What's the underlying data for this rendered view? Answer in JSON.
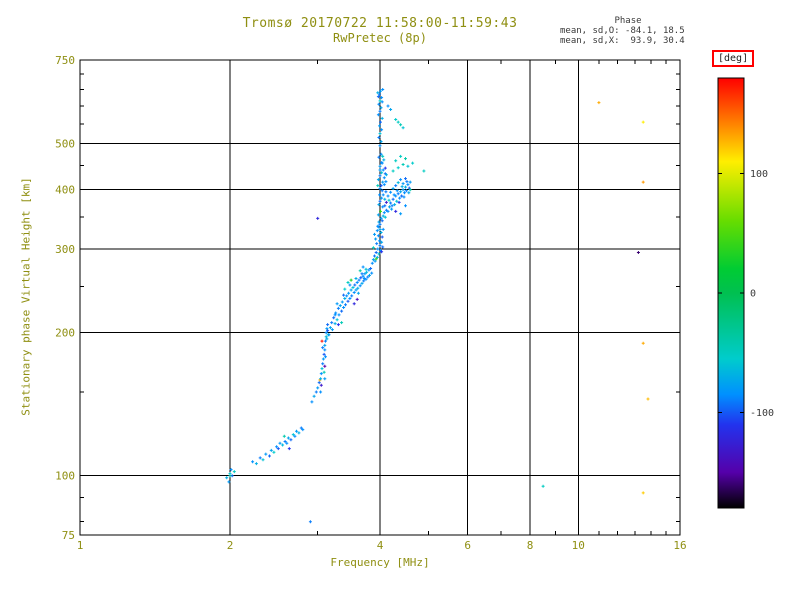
{
  "stats": {
    "heading": "Phase",
    "o_line": "mean, sd,O: -84.1, 18.5",
    "x_line": "mean, sd,X:  93.9, 30.4"
  },
  "colors": {
    "plot_text": "#8f8f12",
    "stats_text": "#3a3a3a",
    "grid": "#000000",
    "background": "#ffffff",
    "deg_box_border": "#ff0000"
  },
  "chart_data": {
    "type": "scatter",
    "title": "Tromsø 20170722 11:58:00-11:59:43",
    "subtitle": "RwPretec (8p)",
    "xlabel": "Frequency [MHz]",
    "ylabel": "Stationary phase Virtual Height [km]",
    "x_scale": "log",
    "y_scale": "log",
    "xlim": [
      1,
      16
    ],
    "ylim": [
      75,
      750
    ],
    "x_major_ticks": [
      1,
      2,
      4,
      6,
      8,
      10,
      16
    ],
    "x_gridlines": [
      2,
      4,
      6,
      8,
      10
    ],
    "x_minor_ticks": [
      3,
      5,
      7,
      9,
      11,
      12,
      13,
      14,
      15
    ],
    "y_major_ticks": [
      75,
      100,
      200,
      300,
      400,
      500,
      750
    ],
    "y_gridlines": [
      100,
      200,
      300,
      400,
      500
    ],
    "y_minor_ticks": [
      80,
      90,
      150,
      250,
      350,
      450,
      550,
      600,
      650,
      700
    ],
    "colorbar": {
      "label": "[deg]",
      "ticks": [
        100,
        0,
        -100
      ],
      "range": [
        -180,
        180
      ],
      "stops": [
        [
          180,
          "#ff0000"
        ],
        [
          140,
          "#ff8800"
        ],
        [
          110,
          "#ffee00"
        ],
        [
          60,
          "#66dd00"
        ],
        [
          20,
          "#00cc33"
        ],
        [
          0,
          "#00c050"
        ],
        [
          -55,
          "#00cccc"
        ],
        [
          -85,
          "#0090ff"
        ],
        [
          -110,
          "#2233ee"
        ],
        [
          -150,
          "#5500aa"
        ],
        [
          -180,
          "#000000"
        ]
      ]
    },
    "points": [
      [
        1.97,
        99,
        -70
      ],
      [
        2.0,
        101,
        -60
      ],
      [
        2.02,
        100,
        -95
      ],
      [
        2.04,
        102,
        -50
      ],
      [
        1.99,
        97,
        -80
      ],
      [
        2.01,
        103,
        -85
      ],
      [
        2.0,
        100,
        -40
      ],
      [
        2.9,
        80,
        -90
      ],
      [
        2.22,
        107,
        -85
      ],
      [
        2.26,
        106,
        -70
      ],
      [
        2.3,
        109,
        -90
      ],
      [
        2.33,
        108,
        -60
      ],
      [
        2.36,
        111,
        -80
      ],
      [
        2.4,
        110,
        -95
      ],
      [
        2.42,
        113,
        -75
      ],
      [
        2.45,
        112,
        -55
      ],
      [
        2.48,
        115,
        -85
      ],
      [
        2.5,
        114,
        -100
      ],
      [
        2.52,
        117,
        -80
      ],
      [
        2.55,
        116,
        -65
      ],
      [
        2.58,
        118,
        -90
      ],
      [
        2.6,
        117,
        -85
      ],
      [
        2.62,
        120,
        -75
      ],
      [
        2.65,
        119,
        -95
      ],
      [
        2.68,
        122,
        -60
      ],
      [
        2.7,
        121,
        -85
      ],
      [
        2.72,
        124,
        -80
      ],
      [
        2.75,
        123,
        -70
      ],
      [
        2.78,
        126,
        -90
      ],
      [
        2.8,
        125,
        -85
      ],
      [
        2.57,
        121,
        -40
      ],
      [
        2.63,
        114,
        -110
      ],
      [
        2.92,
        143,
        -85
      ],
      [
        2.95,
        147,
        -75
      ],
      [
        2.98,
        150,
        -90
      ],
      [
        3.0,
        153,
        -80
      ],
      [
        3.02,
        157,
        -95
      ],
      [
        3.03,
        159,
        130
      ],
      [
        3.04,
        160,
        -70
      ],
      [
        3.05,
        164,
        -85
      ],
      [
        3.06,
        168,
        -60
      ],
      [
        3.07,
        172,
        -90
      ],
      [
        3.08,
        176,
        -80
      ],
      [
        3.09,
        180,
        -100
      ],
      [
        3.1,
        184,
        -85
      ],
      [
        3.1,
        188,
        -75
      ],
      [
        3.11,
        192,
        -90
      ],
      [
        3.06,
        192,
        175
      ],
      [
        3.12,
        196,
        -65
      ],
      [
        3.12,
        200,
        -85
      ],
      [
        3.13,
        204,
        -80
      ],
      [
        3.14,
        208,
        -95
      ],
      [
        3.1,
        170,
        -150
      ],
      [
        3.05,
        155,
        -130
      ],
      [
        3.15,
        198,
        -55
      ],
      [
        3.09,
        165,
        -45
      ],
      [
        3.11,
        178,
        -85
      ],
      [
        3.07,
        186,
        -90
      ],
      [
        3.13,
        194,
        -70
      ],
      [
        3.04,
        150,
        -85
      ],
      [
        3.14,
        202,
        -100
      ],
      [
        3.1,
        160,
        -80
      ],
      [
        3.0,
        348,
        -120
      ],
      [
        3.16,
        198,
        -85
      ],
      [
        3.18,
        205,
        -75
      ],
      [
        3.2,
        210,
        -90
      ],
      [
        3.21,
        203,
        -80
      ],
      [
        3.23,
        215,
        -95
      ],
      [
        3.25,
        209,
        -70
      ],
      [
        3.26,
        220,
        -85
      ],
      [
        3.28,
        213,
        -60
      ],
      [
        3.3,
        225,
        -90
      ],
      [
        3.31,
        218,
        -85
      ],
      [
        3.33,
        228,
        -75
      ],
      [
        3.35,
        222,
        -95
      ],
      [
        3.36,
        232,
        -80
      ],
      [
        3.38,
        226,
        -85
      ],
      [
        3.4,
        236,
        -70
      ],
      [
        3.41,
        229,
        -90
      ],
      [
        3.43,
        239,
        -85
      ],
      [
        3.45,
        233,
        -100
      ],
      [
        3.46,
        242,
        -80
      ],
      [
        3.48,
        236,
        -85
      ],
      [
        3.5,
        246,
        -75
      ],
      [
        3.51,
        239,
        -90
      ],
      [
        3.53,
        249,
        -60
      ],
      [
        3.55,
        243,
        -85
      ],
      [
        3.56,
        252,
        -95
      ],
      [
        3.58,
        246,
        -80
      ],
      [
        3.6,
        255,
        -85
      ],
      [
        3.61,
        248,
        -70
      ],
      [
        3.63,
        258,
        -90
      ],
      [
        3.65,
        251,
        -85
      ],
      [
        3.66,
        261,
        -100
      ],
      [
        3.68,
        254,
        -75
      ],
      [
        3.7,
        263,
        -85
      ],
      [
        3.71,
        257,
        -90
      ],
      [
        3.73,
        266,
        -80
      ],
      [
        3.75,
        259,
        -85
      ],
      [
        3.76,
        268,
        -65
      ],
      [
        3.78,
        262,
        -90
      ],
      [
        3.8,
        271,
        -85
      ],
      [
        3.81,
        264,
        -75
      ],
      [
        3.83,
        273,
        -95
      ],
      [
        3.85,
        267,
        -85
      ],
      [
        3.35,
        210,
        -45
      ],
      [
        3.45,
        255,
        -50
      ],
      [
        3.55,
        230,
        -120
      ],
      [
        3.65,
        270,
        -40
      ],
      [
        3.5,
        258,
        30
      ],
      [
        3.6,
        235,
        -140
      ],
      [
        3.4,
        247,
        -55
      ],
      [
        3.7,
        275,
        -85
      ],
      [
        3.3,
        208,
        -110
      ],
      [
        3.75,
        272,
        -60
      ],
      [
        3.25,
        218,
        -85
      ],
      [
        3.68,
        266,
        -90
      ],
      [
        3.58,
        260,
        -70
      ],
      [
        3.48,
        252,
        -85
      ],
      [
        3.38,
        240,
        -95
      ],
      [
        3.28,
        230,
        -80
      ],
      [
        3.72,
        260,
        -85
      ],
      [
        3.62,
        242,
        -75
      ],
      [
        3.86,
        280,
        -85
      ],
      [
        3.88,
        285,
        -75
      ],
      [
        3.9,
        290,
        -90
      ],
      [
        3.91,
        283,
        -80
      ],
      [
        3.93,
        295,
        -95
      ],
      [
        3.95,
        288,
        -70
      ],
      [
        3.96,
        300,
        -85
      ],
      [
        3.98,
        293,
        -60
      ],
      [
        4.0,
        305,
        -90
      ],
      [
        4.01,
        298,
        -85
      ],
      [
        4.03,
        310,
        -75
      ],
      [
        4.05,
        303,
        -95
      ],
      [
        3.92,
        315,
        -80
      ],
      [
        3.97,
        320,
        -85
      ],
      [
        4.02,
        325,
        -70
      ],
      [
        3.94,
        308,
        -90
      ],
      [
        3.99,
        312,
        -85
      ],
      [
        4.04,
        318,
        -100
      ],
      [
        3.9,
        322,
        -80
      ],
      [
        3.95,
        328,
        -85
      ],
      [
        4.0,
        330,
        -75
      ],
      [
        3.88,
        302,
        -50
      ],
      [
        4.03,
        296,
        -110
      ],
      [
        3.93,
        286,
        40
      ],
      [
        3.97,
        334,
        -85
      ],
      [
        3.96,
        335,
        -85
      ],
      [
        3.98,
        342,
        -75
      ],
      [
        4.0,
        338,
        -90
      ],
      [
        4.02,
        348,
        -80
      ],
      [
        4.04,
        344,
        -95
      ],
      [
        4.06,
        352,
        -70
      ],
      [
        4.08,
        358,
        -85
      ],
      [
        4.1,
        350,
        -60
      ],
      [
        4.12,
        362,
        -90
      ],
      [
        4.05,
        368,
        -85
      ],
      [
        3.98,
        372,
        -75
      ],
      [
        4.0,
        378,
        -95
      ],
      [
        4.03,
        384,
        -80
      ],
      [
        4.06,
        390,
        -85
      ],
      [
        4.09,
        382,
        -70
      ],
      [
        4.11,
        396,
        -90
      ],
      [
        4.0,
        402,
        -85
      ],
      [
        4.02,
        408,
        -100
      ],
      [
        4.05,
        415,
        -80
      ],
      [
        4.08,
        410,
        -85
      ],
      [
        3.97,
        420,
        -75
      ],
      [
        4.0,
        428,
        -90
      ],
      [
        4.03,
        434,
        -60
      ],
      [
        4.06,
        440,
        -85
      ],
      [
        4.1,
        432,
        -95
      ],
      [
        4.0,
        448,
        -80
      ],
      [
        4.04,
        455,
        -85
      ],
      [
        4.07,
        462,
        -70
      ],
      [
        3.98,
        468,
        -90
      ],
      [
        4.02,
        475,
        -85
      ],
      [
        4.05,
        470,
        -50
      ],
      [
        4.1,
        444,
        -110
      ],
      [
        3.96,
        408,
        -45
      ],
      [
        4.12,
        376,
        -130
      ],
      [
        4.08,
        424,
        -85
      ],
      [
        3.99,
        390,
        -85
      ],
      [
        4.01,
        360,
        40
      ],
      [
        4.11,
        416,
        -85
      ],
      [
        4.04,
        398,
        -90
      ],
      [
        3.97,
        354,
        -75
      ],
      [
        4.06,
        330,
        -85
      ],
      [
        4.09,
        370,
        -95
      ],
      [
        4.0,
        440,
        -80
      ],
      [
        4.03,
        456,
        -85
      ],
      [
        4.12,
        430,
        -70
      ],
      [
        4.15,
        360,
        -85
      ],
      [
        4.18,
        368,
        -75
      ],
      [
        4.2,
        375,
        -90
      ],
      [
        4.22,
        364,
        -80
      ],
      [
        4.25,
        382,
        -95
      ],
      [
        4.28,
        372,
        -70
      ],
      [
        4.3,
        388,
        -85
      ],
      [
        4.32,
        378,
        -60
      ],
      [
        4.35,
        392,
        -90
      ],
      [
        4.38,
        384,
        -85
      ],
      [
        4.4,
        396,
        -75
      ],
      [
        4.42,
        388,
        -95
      ],
      [
        4.45,
        400,
        -80
      ],
      [
        4.48,
        394,
        -85
      ],
      [
        4.5,
        405,
        -70
      ],
      [
        4.52,
        398,
        -90
      ],
      [
        4.55,
        410,
        -85
      ],
      [
        4.58,
        403,
        -100
      ],
      [
        4.6,
        415,
        -80
      ],
      [
        4.2,
        395,
        -85
      ],
      [
        4.25,
        402,
        -75
      ],
      [
        4.3,
        408,
        -90
      ],
      [
        4.35,
        414,
        -65
      ],
      [
        4.4,
        420,
        -85
      ],
      [
        4.45,
        412,
        -80
      ],
      [
        4.5,
        422,
        -95
      ],
      [
        4.17,
        380,
        -55
      ],
      [
        4.27,
        390,
        -85
      ],
      [
        4.37,
        376,
        -110
      ],
      [
        4.47,
        386,
        -85
      ],
      [
        4.57,
        394,
        -75
      ],
      [
        4.23,
        370,
        -90
      ],
      [
        4.33,
        398,
        -85
      ],
      [
        4.43,
        406,
        -70
      ],
      [
        4.53,
        416,
        -90
      ],
      [
        4.15,
        388,
        -85
      ],
      [
        4.6,
        400,
        -40
      ],
      [
        4.3,
        360,
        -120
      ],
      [
        4.5,
        370,
        -85
      ],
      [
        4.4,
        356,
        -80
      ],
      [
        4.25,
        438,
        -50
      ],
      [
        4.35,
        445,
        -55
      ],
      [
        4.45,
        452,
        -45
      ],
      [
        4.55,
        448,
        -60
      ],
      [
        4.3,
        460,
        -50
      ],
      [
        4.5,
        465,
        -40
      ],
      [
        4.65,
        455,
        -55
      ],
      [
        4.4,
        470,
        -50
      ],
      [
        4.9,
        438,
        -50
      ],
      [
        4.0,
        495,
        -85
      ],
      [
        4.02,
        505,
        -75
      ],
      [
        3.98,
        515,
        -90
      ],
      [
        4.0,
        525,
        -60
      ],
      [
        4.03,
        535,
        -85
      ],
      [
        3.99,
        545,
        -80
      ],
      [
        4.01,
        555,
        -95
      ],
      [
        4.04,
        565,
        -70
      ],
      [
        3.97,
        575,
        -85
      ],
      [
        4.0,
        585,
        -90
      ],
      [
        4.02,
        595,
        -75
      ],
      [
        3.98,
        605,
        -85
      ],
      [
        4.0,
        615,
        -55
      ],
      [
        4.03,
        625,
        -85
      ],
      [
        3.99,
        635,
        -90
      ],
      [
        4.01,
        645,
        -80
      ],
      [
        3.96,
        640,
        -70
      ],
      [
        4.05,
        650,
        -85
      ],
      [
        3.97,
        628,
        -95
      ],
      [
        4.04,
        612,
        -85
      ],
      [
        4.35,
        555,
        -50
      ],
      [
        4.4,
        548,
        -45
      ],
      [
        4.3,
        562,
        -55
      ],
      [
        4.45,
        540,
        -60
      ],
      [
        4.15,
        600,
        -85
      ],
      [
        4.2,
        590,
        -75
      ],
      [
        11.0,
        610,
        130
      ],
      [
        13.5,
        555,
        110
      ],
      [
        13.5,
        415,
        135
      ],
      [
        13.2,
        295,
        -160
      ],
      [
        13.5,
        190,
        130
      ],
      [
        13.8,
        145,
        125
      ],
      [
        8.5,
        95,
        -50
      ],
      [
        13.5,
        92,
        120
      ]
    ]
  }
}
